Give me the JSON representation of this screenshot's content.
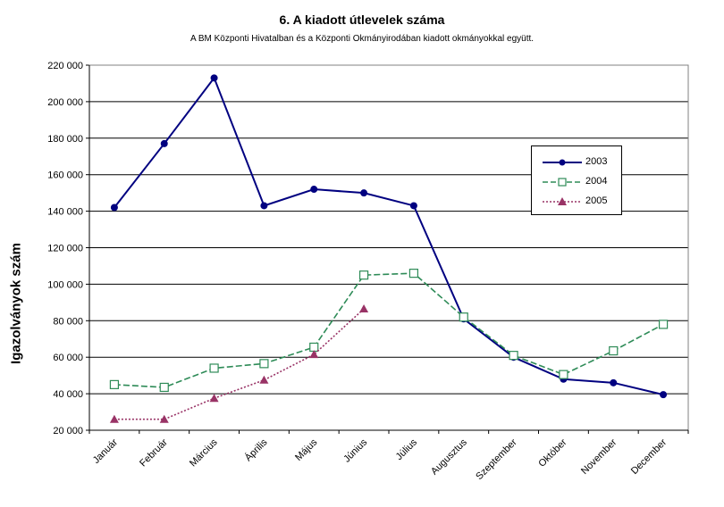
{
  "chart_data": {
    "type": "line",
    "title": "6. A  kiadott útlevelek száma",
    "subtitle": "A BM Központi Hivatalban és a Központi Okmányirodában kiadott okmányokkal együtt.",
    "xlabel": "",
    "ylabel": "Igazolványok szám",
    "ylim": [
      20000,
      220000
    ],
    "yticks": [
      "20 000",
      "40 000",
      "60 000",
      "80 000",
      "100 000",
      "120 000",
      "140 000",
      "160 000",
      "180 000",
      "200 000",
      "220 000"
    ],
    "grid": "horizontal",
    "legend": "right",
    "categories": [
      "Január",
      "Február",
      "Március",
      "Április",
      "Május",
      "Június",
      "Július",
      "Augusztus",
      "Szeptember",
      "Október",
      "November",
      "December"
    ],
    "series": [
      {
        "name": "2003",
        "color": "#000080",
        "marker": "circle",
        "dash": "solid",
        "values": [
          142000,
          177000,
          213000,
          143000,
          152000,
          150000,
          143000,
          81000,
          60000,
          48000,
          46000,
          39500
        ]
      },
      {
        "name": "2004",
        "color": "#2e8b57",
        "marker": "square-open",
        "dash": "dashed",
        "values": [
          45000,
          43500,
          54000,
          56500,
          65500,
          105000,
          106000,
          82000,
          61000,
          50500,
          63500,
          78000
        ]
      },
      {
        "name": "2005",
        "color": "#993366",
        "marker": "triangle",
        "dash": "dotted",
        "values": [
          26000,
          26000,
          37500,
          47500,
          61500,
          86500,
          null,
          null,
          null,
          null,
          null,
          null
        ]
      }
    ]
  }
}
